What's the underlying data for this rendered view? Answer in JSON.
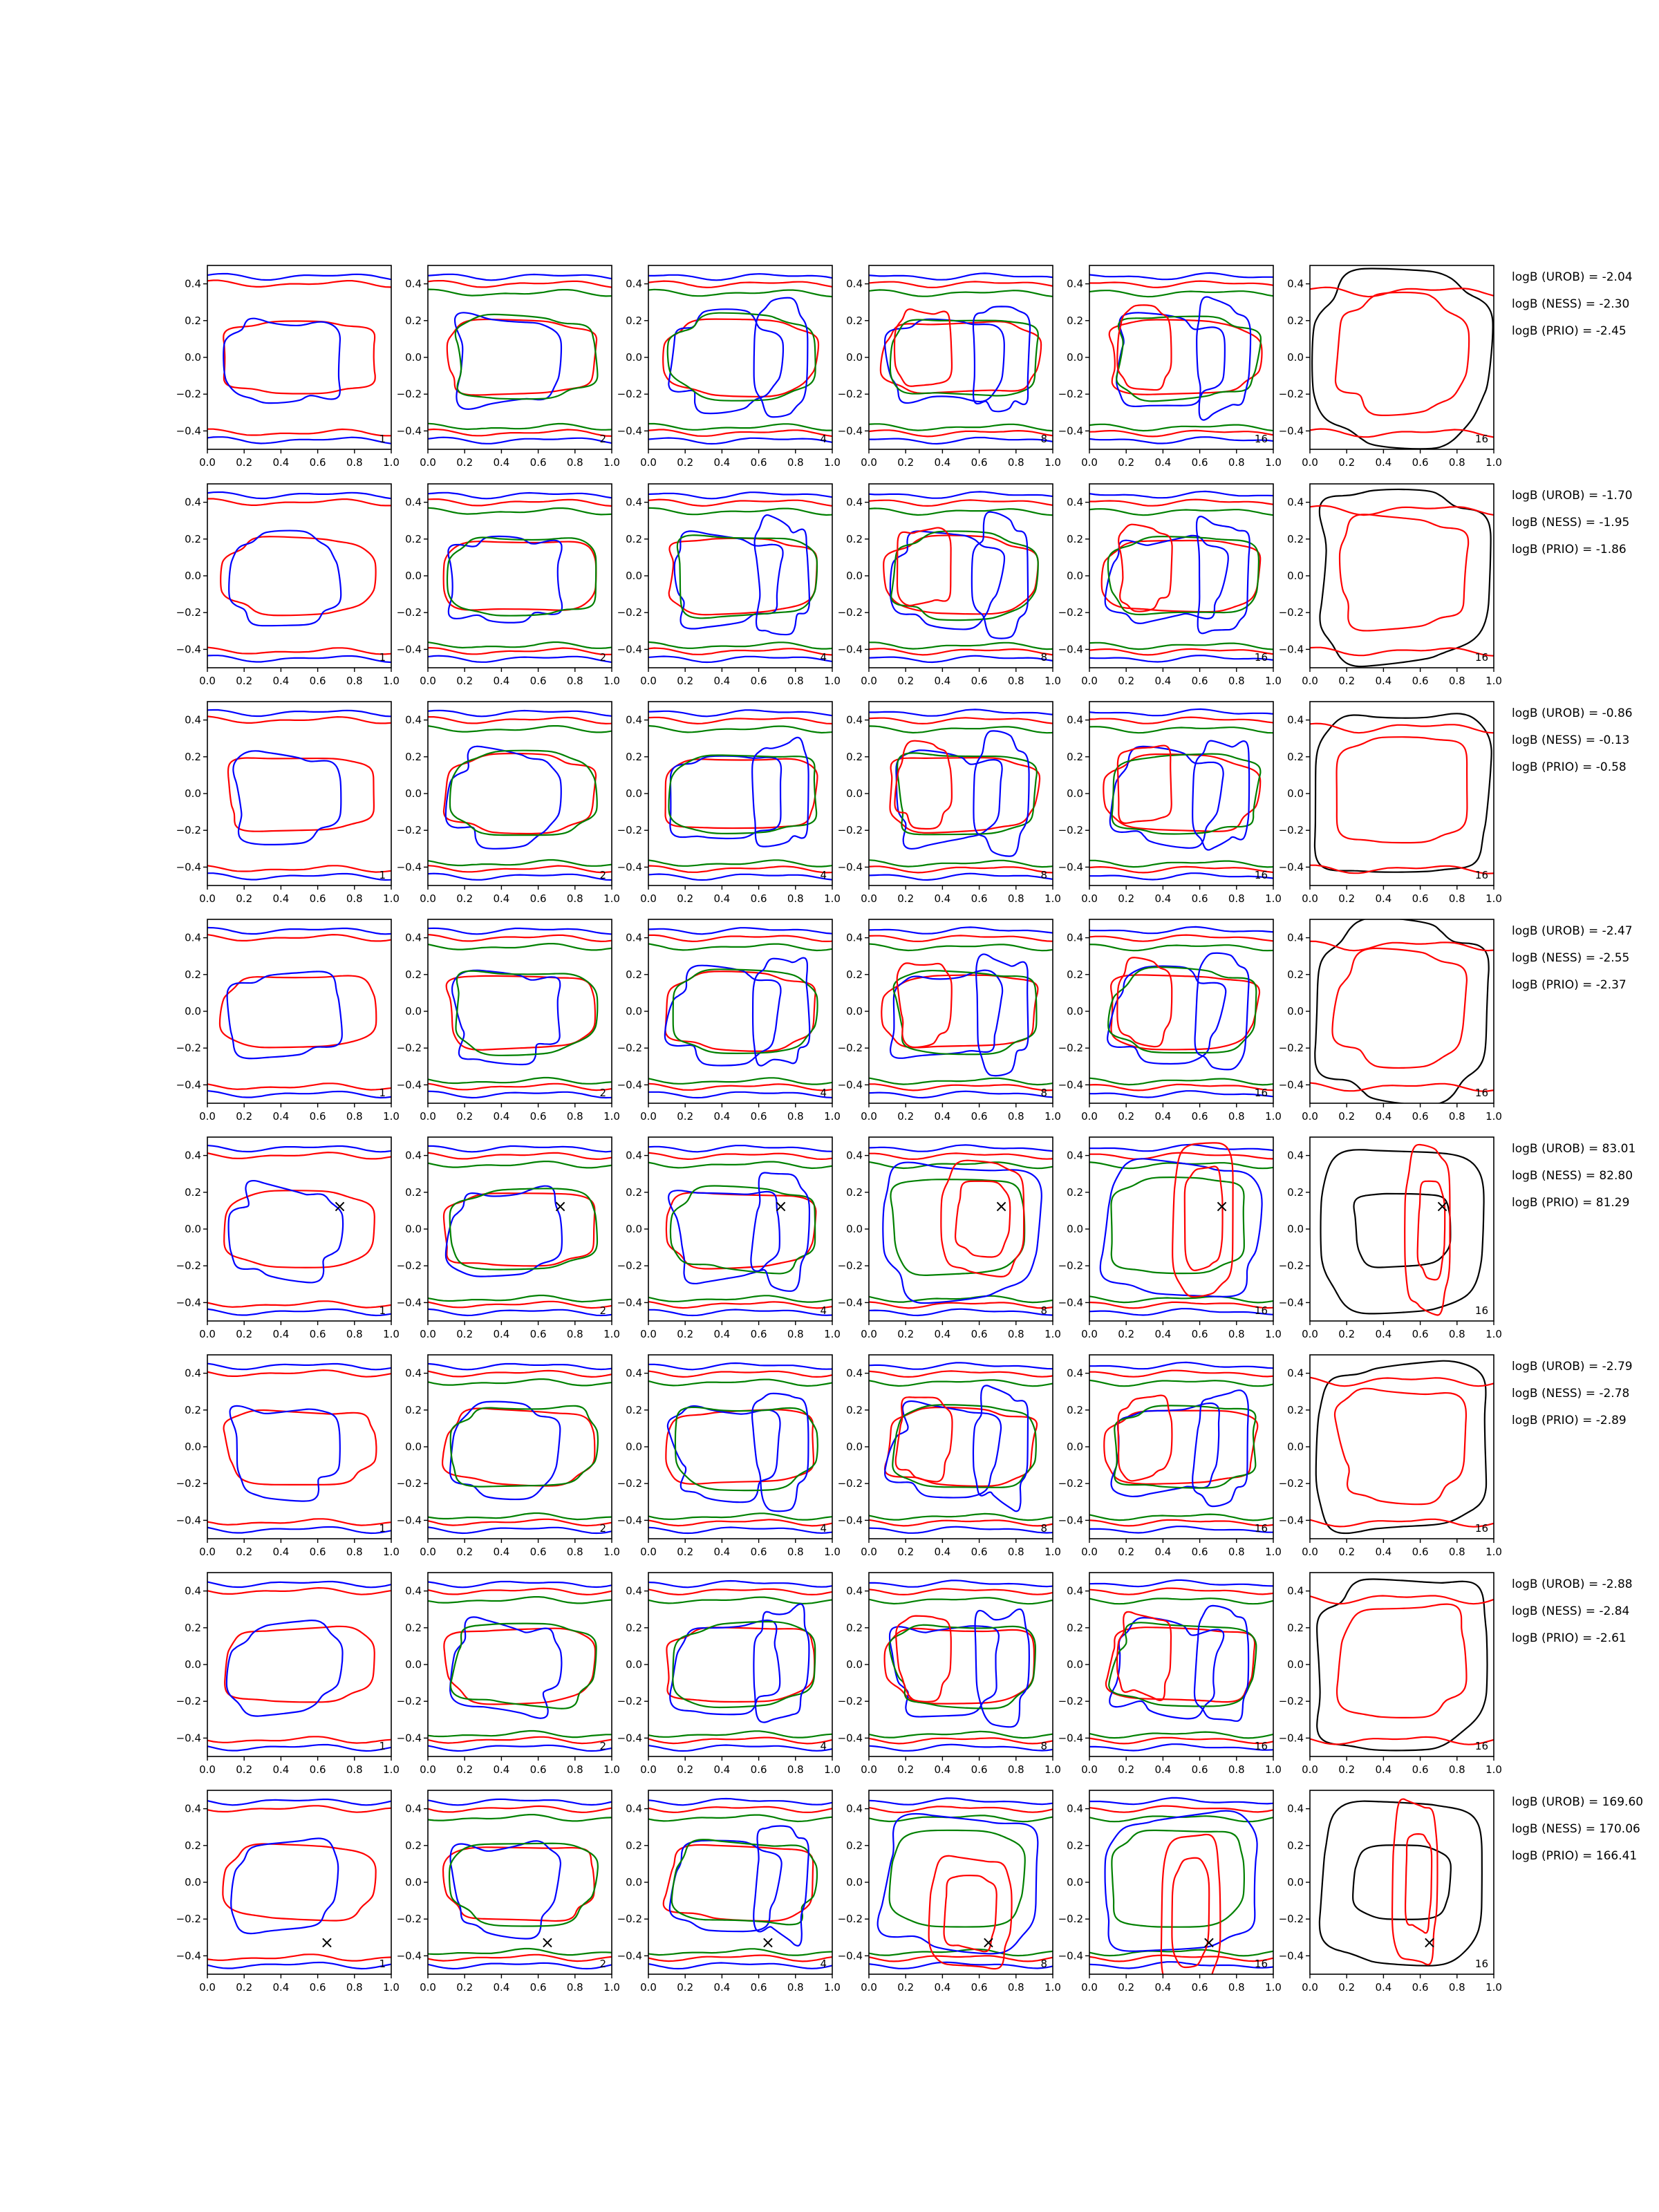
{
  "figure": {
    "columns": 6,
    "rows": 8,
    "series_colors": {
      "blue": "#0000ff",
      "red": "#ff0000",
      "green": "#008000",
      "black": "#000000"
    },
    "marker": "×"
  },
  "chart_data": {
    "type": "contour",
    "xlim": [
      0.0,
      1.0
    ],
    "ylim": [
      -0.5,
      0.5
    ],
    "xticks": [
      "0.0",
      "0.2",
      "0.4",
      "0.6",
      "0.8",
      "1.0"
    ],
    "yticks": [
      "0.4",
      "0.2",
      "0.0",
      "−0.2",
      "−0.4"
    ],
    "panel_tags": [
      "1",
      "2",
      "4",
      "8",
      "16",
      "16"
    ],
    "rows": [
      {
        "stats": [
          "logB (UROB) = -2.04",
          "logB (NESS) = -2.30",
          "logB (PRIO) = -2.45"
        ],
        "marker": null
      },
      {
        "stats": [
          "logB (UROB) = -1.70",
          "logB (NESS) = -1.95",
          "logB (PRIO) = -1.86"
        ],
        "marker": null
      },
      {
        "stats": [
          "logB (UROB) = -0.86",
          "logB (NESS) = -0.13",
          "logB (PRIO) = -0.58"
        ],
        "marker": null
      },
      {
        "stats": [
          "logB (UROB) = -2.47",
          "logB (NESS) = -2.55",
          "logB (PRIO) = -2.37"
        ],
        "marker": null
      },
      {
        "stats": [
          "logB (UROB) = 83.01",
          "logB (NESS) = 82.80",
          "logB (PRIO) = 81.29"
        ],
        "marker": [
          0.72,
          0.12
        ]
      },
      {
        "stats": [
          "logB (UROB) = -2.79",
          "logB (NESS) = -2.78",
          "logB (PRIO) = -2.89"
        ],
        "marker": null
      },
      {
        "stats": [
          "logB (UROB) = -2.88",
          "logB (NESS) = -2.84",
          "logB (PRIO) = -2.61"
        ],
        "marker": null
      },
      {
        "stats": [
          "logB (UROB) = 169.60",
          "logB (NESS) = 170.06",
          "logB (PRIO) = 166.41"
        ],
        "marker": [
          0.65,
          -0.33
        ]
      }
    ]
  }
}
